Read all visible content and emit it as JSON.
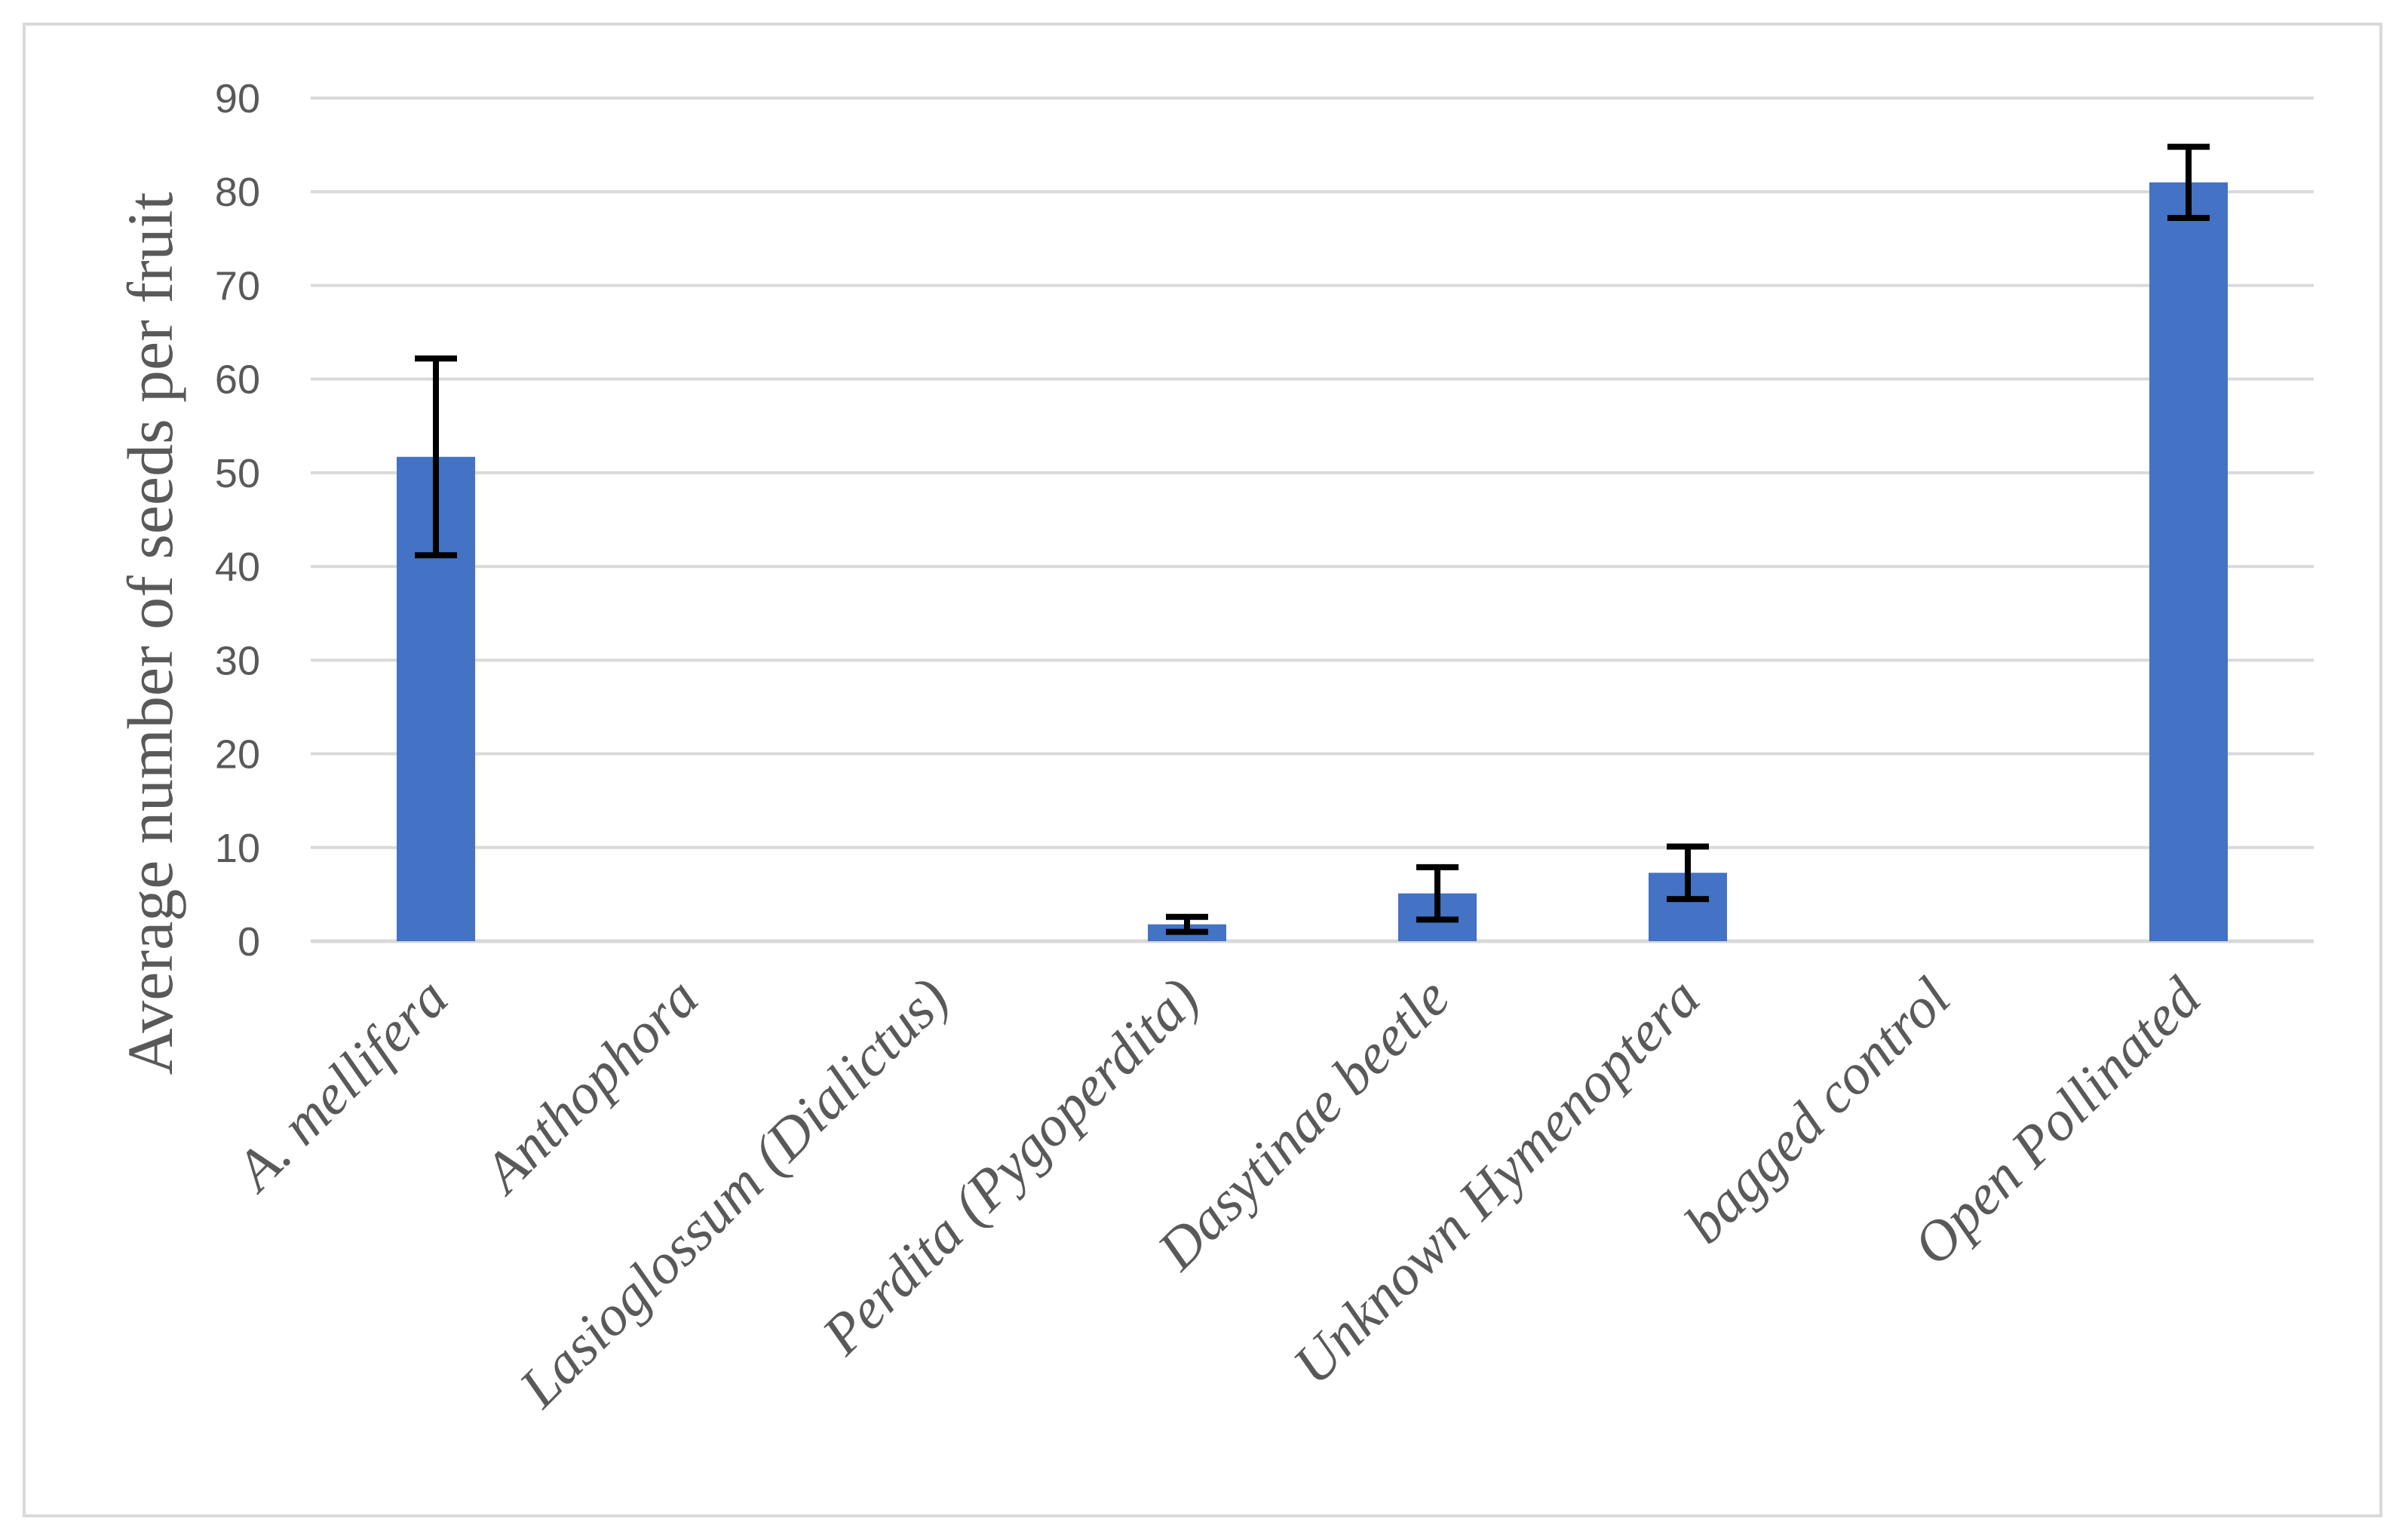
{
  "chart_data": {
    "type": "bar",
    "title": "",
    "xlabel": "",
    "ylabel": "Average number of seeds per fruit",
    "ylim": [
      0,
      90
    ],
    "yticks": [
      0,
      10,
      20,
      30,
      40,
      50,
      60,
      70,
      80,
      90
    ],
    "grid": true,
    "legend": "none",
    "categories": [
      "A. mellifera",
      "Anthophora",
      "Lasioglossum (Dialictus)",
      "Perdita (Pygoperdita)",
      "Dasytinae beetle",
      "Unknown Hymenoptera",
      "bagged control",
      "Open Pollinated"
    ],
    "series": [
      {
        "values": [
          51.7,
          0,
          0,
          1.8,
          5.1,
          7.3,
          0,
          81
        ],
        "error": [
          10.5,
          0,
          0,
          0.8,
          2.8,
          2.8,
          0,
          3.8
        ]
      }
    ],
    "colors": {
      "bar": "#4472c4",
      "grid": "#d9d9d9",
      "text": "#595959",
      "error_bar": "#000000"
    }
  }
}
